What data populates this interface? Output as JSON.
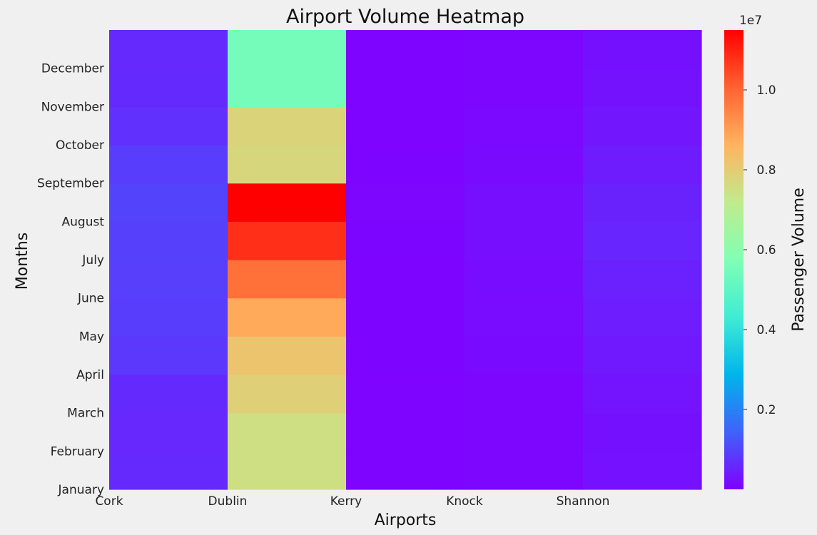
{
  "chart_data": {
    "type": "heatmap",
    "title": "Airport Volume Heatmap",
    "xlabel": "Airports",
    "ylabel": "Months",
    "x_tick_labels": [
      "Cork",
      "Dublin",
      "Kerry",
      "Knock",
      "Shannon"
    ],
    "y_tick_labels": [
      "January",
      "February",
      "March",
      "April",
      "May",
      "June",
      "July",
      "August",
      "September",
      "October",
      "November",
      "December"
    ],
    "colorbar": {
      "label": "Passenger Volume",
      "colormap": "rainbow",
      "range": [
        0,
        11500000
      ],
      "ticks": [
        {
          "value": 2000000,
          "label": "0.2"
        },
        {
          "value": 4000000,
          "label": "0.4"
        },
        {
          "value": 6000000,
          "label": "0.6"
        },
        {
          "value": 8000000,
          "label": "0.8"
        },
        {
          "value": 10000000,
          "label": "1.0"
        }
      ],
      "offset_label": "1e7"
    },
    "grid": false,
    "columns": [
      {
        "name": "Cork",
        "values": [
          600000,
          580000,
          620000,
          800000,
          900000,
          920000,
          940000,
          1000000,
          900000,
          700000,
          620000,
          600000
        ]
      },
      {
        "name": "Dublin",
        "values": [
          7500000,
          7500000,
          7900000,
          8200000,
          8800000,
          9800000,
          10800000,
          11500000,
          7700000,
          7800000,
          5500000,
          5500000
        ]
      },
      {
        "name": "Kerry",
        "values": [
          50000,
          45000,
          55000,
          60000,
          70000,
          75000,
          80000,
          85000,
          65000,
          55000,
          40000,
          40000
        ]
      },
      {
        "name": "Knock",
        "values": [
          90000,
          85000,
          95000,
          130000,
          160000,
          180000,
          200000,
          200000,
          150000,
          120000,
          90000,
          90000
        ]
      },
      {
        "name": "Shannon",
        "values": [
          250000,
          240000,
          280000,
          350000,
          420000,
          480000,
          550000,
          500000,
          400000,
          320000,
          260000,
          240000
        ]
      }
    ]
  }
}
